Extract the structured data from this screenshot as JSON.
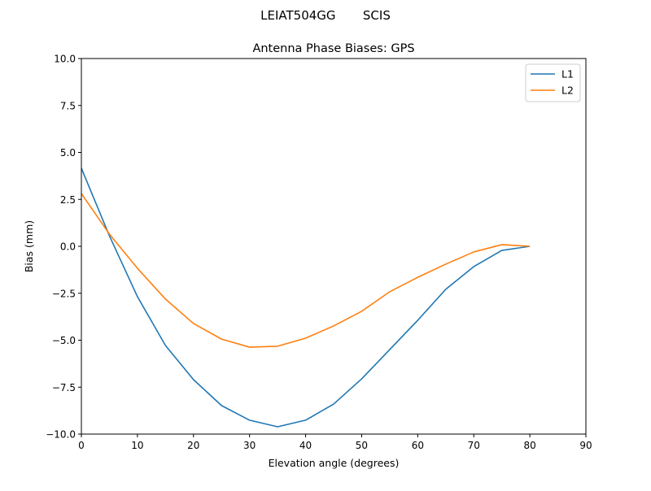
{
  "chart_data": {
    "type": "line",
    "suptitle": "LEIAT504GG       SCIS",
    "title": "Antenna Phase Biases: GPS",
    "xlabel": "Elevation angle (degrees)",
    "ylabel": "Bias (mm)",
    "xlim": [
      0,
      90
    ],
    "ylim": [
      -10,
      10
    ],
    "xticks": [
      0,
      10,
      20,
      30,
      40,
      50,
      60,
      70,
      80,
      90
    ],
    "xtick_labels": [
      "0",
      "10",
      "20",
      "30",
      "40",
      "50",
      "60",
      "70",
      "80",
      "90"
    ],
    "yticks": [
      -10,
      -7.5,
      -5,
      -2.5,
      0,
      2.5,
      5,
      7.5,
      10
    ],
    "ytick_labels": [
      "−10.0",
      "−7.5",
      "−5.0",
      "−2.5",
      "0.0",
      "2.5",
      "5.0",
      "7.5",
      "10.0"
    ],
    "grid": false,
    "legend_placement": "upper right",
    "x": [
      0,
      5,
      10,
      15,
      20,
      25,
      30,
      35,
      40,
      45,
      50,
      55,
      60,
      65,
      70,
      75,
      80
    ],
    "series": [
      {
        "name": "L1",
        "color": "#1f77b4",
        "values": [
          4.16,
          0.56,
          -2.68,
          -5.28,
          -7.1,
          -8.48,
          -9.26,
          -9.61,
          -9.26,
          -8.4,
          -7.06,
          -5.5,
          -3.94,
          -2.29,
          -1.08,
          -0.22,
          0.0
        ]
      },
      {
        "name": "L2",
        "color": "#ff7f0e",
        "values": [
          2.81,
          0.65,
          -1.17,
          -2.81,
          -4.11,
          -4.94,
          -5.37,
          -5.32,
          -4.89,
          -4.24,
          -3.46,
          -2.42,
          -1.65,
          -0.95,
          -0.3,
          0.09,
          0.0
        ]
      }
    ]
  }
}
